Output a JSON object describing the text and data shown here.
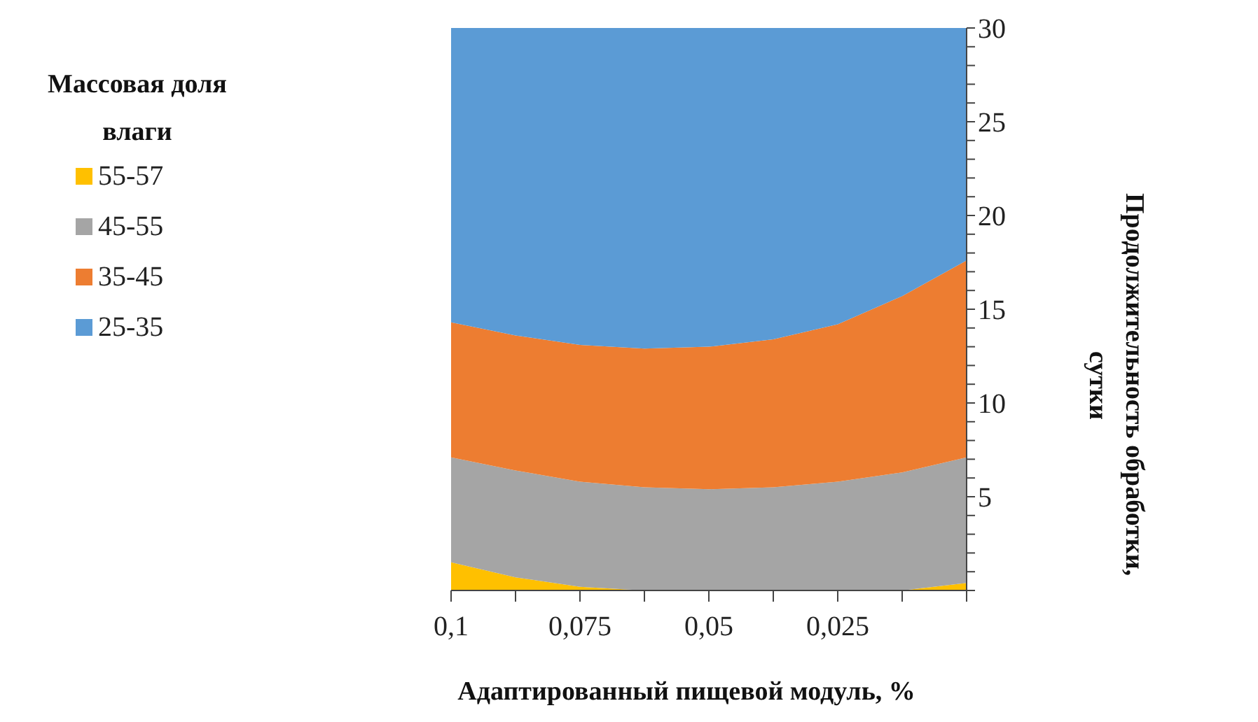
{
  "chart_data": {
    "type": "area",
    "stacked": true,
    "xlabel": "Адаптированный пищевой модуль, %",
    "ylabel": "Продолжительность обработки, сутки",
    "legend_title": "Массовая доля влаги",
    "legend": "left",
    "x": [
      0.1,
      0.0875,
      0.075,
      0.0625,
      0.05,
      0.0375,
      0.025,
      0.0125,
      0
    ],
    "xlim": [
      0.1,
      0
    ],
    "xticks": [
      {
        "value": 0.1,
        "label": "0,1"
      },
      {
        "value": 0.0875,
        "label": null
      },
      {
        "value": 0.075,
        "label": "0,075"
      },
      {
        "value": 0.0625,
        "label": null
      },
      {
        "value": 0.05,
        "label": "0,05"
      },
      {
        "value": 0.0375,
        "label": null
      },
      {
        "value": 0.025,
        "label": "0,025"
      },
      {
        "value": 0.0125,
        "label": null
      },
      {
        "value": 0,
        "label": null
      }
    ],
    "ylim": [
      0,
      30
    ],
    "yticks": [
      {
        "value": 0,
        "label": null
      },
      {
        "value": 1,
        "label": null
      },
      {
        "value": 2,
        "label": null
      },
      {
        "value": 3,
        "label": null
      },
      {
        "value": 4,
        "label": null
      },
      5,
      {
        "value": 6,
        "label": null
      },
      {
        "value": 7,
        "label": null
      },
      {
        "value": 8,
        "label": null
      },
      {
        "value": 9,
        "label": null
      },
      10,
      {
        "value": 11,
        "label": null
      },
      {
        "value": 12,
        "label": null
      },
      {
        "value": 13,
        "label": null
      },
      {
        "value": 14,
        "label": null
      },
      15,
      {
        "value": 16,
        "label": null
      },
      {
        "value": 17,
        "label": null
      },
      {
        "value": 18,
        "label": null
      },
      {
        "value": 19,
        "label": null
      },
      20,
      {
        "value": 21,
        "label": null
      },
      {
        "value": 22,
        "label": null
      },
      {
        "value": 23,
        "label": null
      },
      {
        "value": 24,
        "label": null
      },
      25,
      {
        "value": 26,
        "label": null
      },
      {
        "value": 27,
        "label": null
      },
      {
        "value": 28,
        "label": null
      },
      {
        "value": 29,
        "label": null
      },
      30
    ],
    "series": [
      {
        "name": "55-57",
        "color": "#ffc000",
        "values": [
          1.5,
          0.7,
          0.2,
          0,
          0,
          0,
          0,
          0,
          0.4
        ]
      },
      {
        "name": "45-55",
        "color": "#a5a5a5",
        "values": [
          5.6,
          5.7,
          5.6,
          5.5,
          5.4,
          5.5,
          5.8,
          6.3,
          6.7
        ]
      },
      {
        "name": "35-45",
        "color": "#ed7d31",
        "values": [
          7.2,
          7.2,
          7.3,
          7.4,
          7.6,
          7.9,
          8.4,
          9.4,
          10.5
        ]
      },
      {
        "name": "25-35",
        "color": "#5b9bd5",
        "values": [
          15.7,
          16.4,
          16.9,
          17.1,
          17.0,
          16.6,
          15.8,
          14.3,
          12.4
        ]
      }
    ]
  }
}
